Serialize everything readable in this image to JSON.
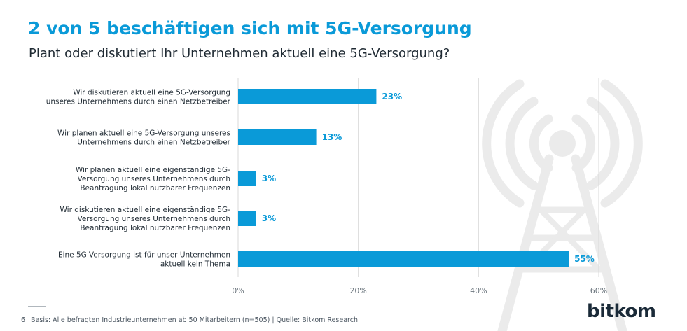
{
  "header": {
    "title": "2 von 5 beschäftigen sich mit 5G-Versorgung",
    "subtitle": "Plant oder diskutiert Ihr Unternehmen aktuell eine 5G-Versorgung?"
  },
  "chart_data": {
    "type": "bar",
    "orientation": "horizontal",
    "categories": [
      [
        "Wir diskutieren aktuell eine 5G-Versorgung",
        "unseres Unternehmens durch einen Netzbetreiber"
      ],
      [
        "Wir planen aktuell eine 5G-Versorgung unseres",
        "Unternehmens durch einen Netzbetreiber"
      ],
      [
        "Wir planen aktuell eine eigenständige 5G-",
        "Versorgung unseres Unternehmens durch",
        "Beantragung lokal nutzbarer Frequenzen"
      ],
      [
        "Wir diskutieren aktuell eine eigenständige 5G-",
        "Versorgung unseres Unternehmens durch",
        "Beantragung lokal nutzbarer Frequenzen"
      ],
      [
        "Eine 5G-Versorgung ist für unser Unternehmen",
        "aktuell kein Thema"
      ]
    ],
    "values": [
      23,
      13,
      3,
      3,
      55
    ],
    "value_labels": [
      "23%",
      "13%",
      "3%",
      "3%",
      "55%"
    ],
    "xlim": [
      0,
      60
    ],
    "xticks": [
      0,
      20,
      40,
      60
    ],
    "xtick_labels": [
      "0%",
      "20%",
      "40%",
      "60%"
    ],
    "grid": true,
    "bar_color": "#0a9ad8",
    "label_color": "#0a9ad8"
  },
  "watermark": {
    "icon": "antenna-icon",
    "color": "#ebebeb"
  },
  "footer": {
    "page_number": "6",
    "note": "Basis: Alle befragten Industrieunternehmen  ab 50 Mitarbeitern (n=505)  | Quelle: Bitkom Research"
  },
  "logo": {
    "text": "bitkom"
  },
  "colors": {
    "accent": "#0a9ad8",
    "text": "#1f2a33",
    "grid": "#d9d9d9"
  }
}
